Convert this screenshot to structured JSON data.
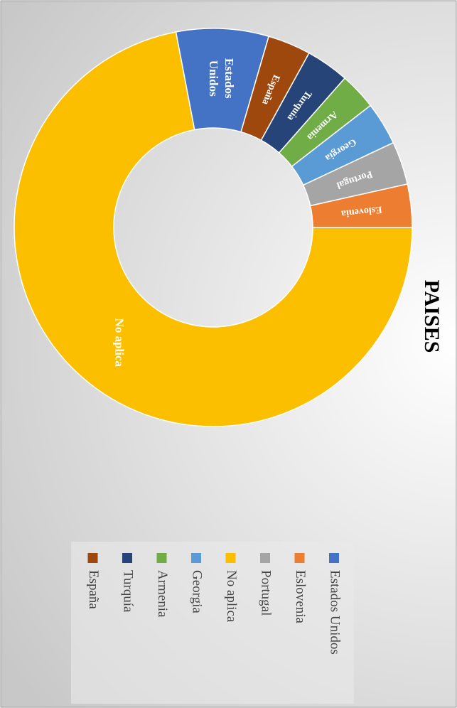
{
  "chart_data": {
    "type": "donut",
    "title": "PAISES",
    "categories": [
      "No aplica",
      "Estados Unidos",
      "España",
      "Turquía",
      "Armenia",
      "Georgia",
      "Portugal",
      "Eslovenia"
    ],
    "values": [
      72,
      7.5,
      3.5,
      3.5,
      3,
      3.5,
      3.5,
      3.5
    ],
    "colors": [
      "#fbbf00",
      "#4472c4",
      "#9e480e",
      "#264478",
      "#70ad47",
      "#5b9bd5",
      "#a5a5a5",
      "#ed7d31"
    ],
    "legend": "bottom"
  }
}
